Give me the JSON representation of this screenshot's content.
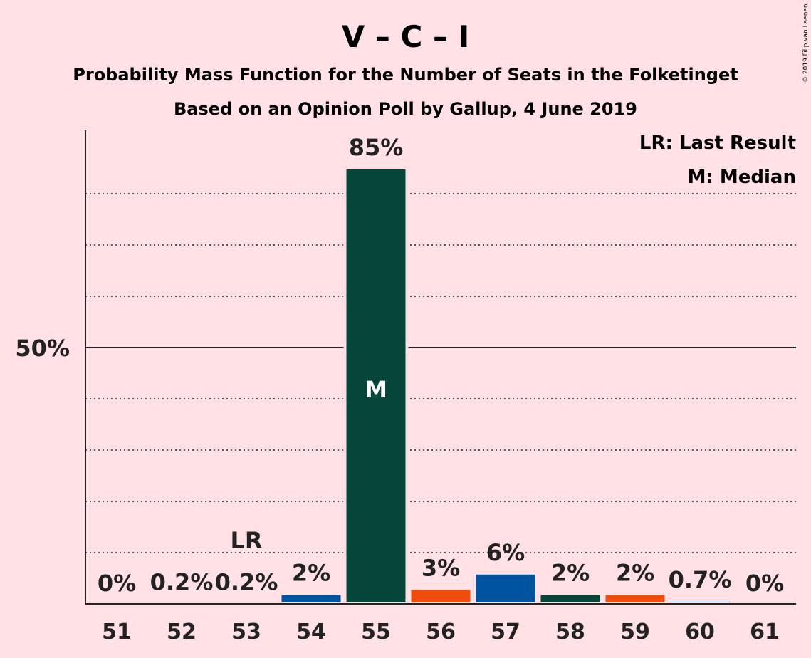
{
  "title": "V – C – I",
  "subtitle_1": "Probability Mass Function for the Number of Seats in the Folketinget",
  "subtitle_2": "Based on an Opinion Poll by Gallup, 4 June 2019",
  "copyright": "© 2019 Filip van Laenen",
  "legend": {
    "last_result": "LR: Last Result",
    "median": "M: Median"
  },
  "markers": {
    "last_result_label": "LR",
    "last_result_seat": 53,
    "median_label": "M",
    "median_seat": 55
  },
  "colors": {
    "background": "#FFE1E6",
    "dark_green": "#04473A",
    "blue": "#00539E",
    "orange": "#F04C0C",
    "axis": "#222222"
  },
  "chart_data": {
    "type": "bar",
    "categories": [
      "51",
      "52",
      "53",
      "54",
      "55",
      "56",
      "57",
      "58",
      "59",
      "60",
      "61"
    ],
    "values": [
      0,
      0.2,
      0.2,
      2,
      85,
      3,
      6,
      2,
      2,
      0.7,
      0
    ],
    "labels": [
      "0%",
      "0.2%",
      "0.2%",
      "2%",
      "85%",
      "3%",
      "6%",
      "2%",
      "2%",
      "0.7%",
      "0%"
    ],
    "bar_colors": [
      "#04473A",
      "#04473A",
      "#04473A",
      "#00539E",
      "#04473A",
      "#F04C0C",
      "#00539E",
      "#04473A",
      "#F04C0C",
      "#00539E",
      "#04473A"
    ],
    "ylim": [
      0,
      92
    ],
    "yticks": [
      50
    ],
    "ytick_labels": [
      "50%"
    ],
    "dotted_gridlines": [
      10,
      20,
      30,
      40,
      60,
      70,
      80
    ],
    "solid_gridlines": [
      50
    ],
    "legend_position": "top-right"
  }
}
